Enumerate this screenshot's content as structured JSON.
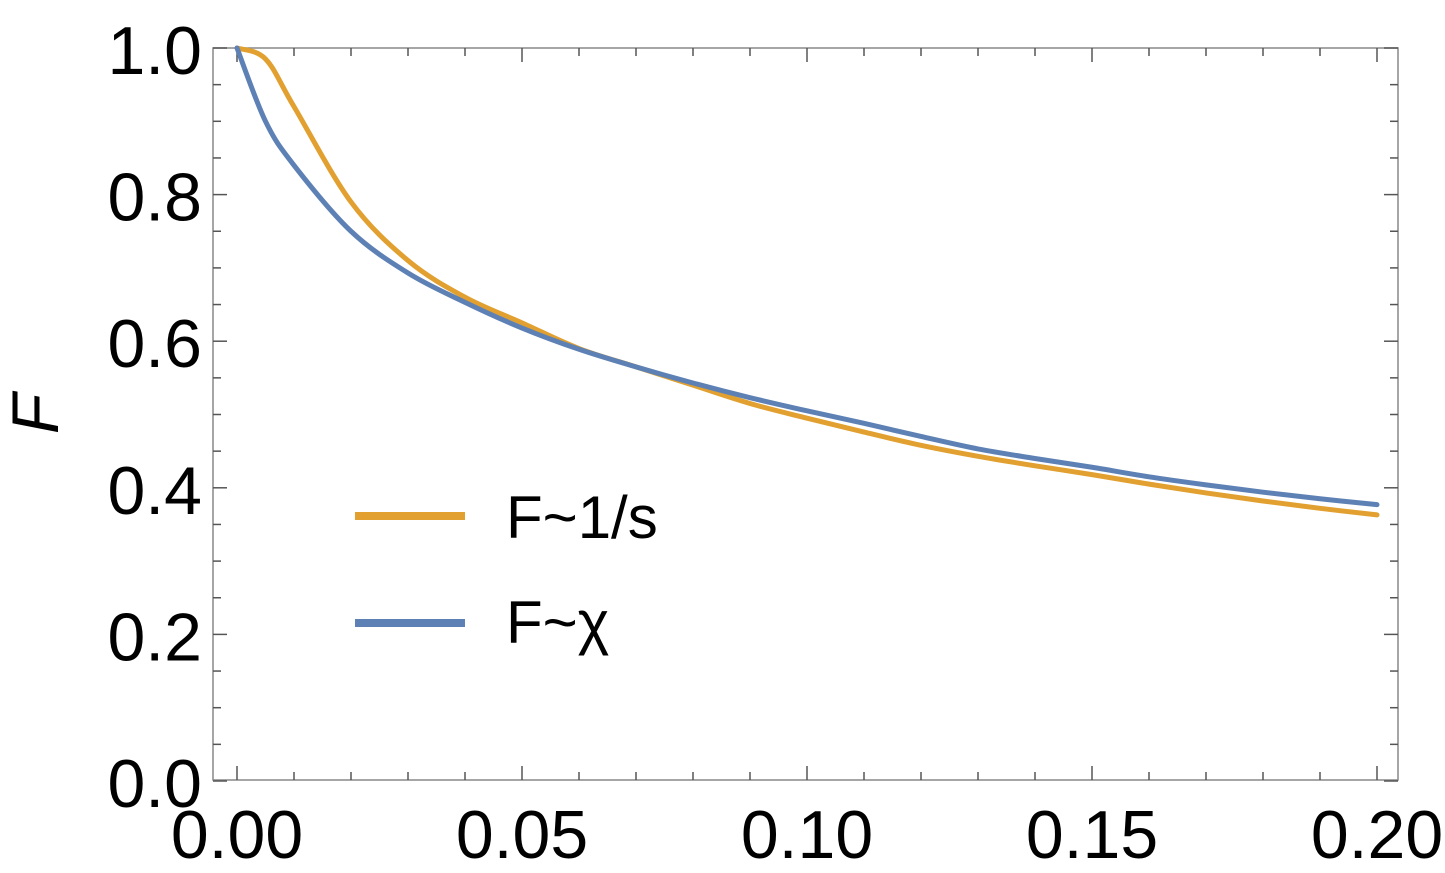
{
  "chart_data": {
    "type": "line",
    "title": "",
    "xlabel": "",
    "ylabel": "F",
    "xlim": [
      0,
      0.2
    ],
    "ylim": [
      0,
      1.0
    ],
    "x_ticks": [
      0,
      0.05,
      0.1,
      0.15,
      0.2
    ],
    "x_tick_labels": [
      "0.00",
      "0.05",
      "0.10",
      "0.15",
      "0.20"
    ],
    "y_ticks": [
      0,
      0.2,
      0.4,
      0.6,
      0.8,
      1.0
    ],
    "y_tick_labels": [
      "0.0",
      "0.2",
      "0.4",
      "0.6",
      "0.8",
      "1.0"
    ],
    "grid": false,
    "legend_position": "lower-left",
    "series": [
      {
        "name": "F~1/s",
        "color": "#E1A02F",
        "x": [
          0,
          0.005,
          0.01,
          0.02,
          0.03,
          0.04,
          0.05,
          0.06,
          0.07,
          0.08,
          0.09,
          0.1,
          0.11,
          0.12,
          0.13,
          0.14,
          0.15,
          0.16,
          0.17,
          0.18,
          0.19,
          0.2
        ],
        "y": [
          1.0,
          0.985,
          0.92,
          0.79,
          0.71,
          0.66,
          0.625,
          0.59,
          0.565,
          0.54,
          0.515,
          0.495,
          0.476,
          0.458,
          0.443,
          0.43,
          0.418,
          0.405,
          0.393,
          0.382,
          0.372,
          0.363
        ]
      },
      {
        "name": "F~χ",
        "color": "#5E81B5",
        "x": [
          0,
          0.005,
          0.01,
          0.02,
          0.03,
          0.04,
          0.05,
          0.06,
          0.07,
          0.08,
          0.09,
          0.1,
          0.11,
          0.12,
          0.13,
          0.14,
          0.15,
          0.16,
          0.17,
          0.18,
          0.19,
          0.2
        ],
        "y": [
          1.0,
          0.9,
          0.84,
          0.75,
          0.693,
          0.653,
          0.618,
          0.589,
          0.565,
          0.543,
          0.523,
          0.505,
          0.488,
          0.47,
          0.453,
          0.44,
          0.428,
          0.415,
          0.404,
          0.394,
          0.385,
          0.377
        ]
      }
    ]
  }
}
